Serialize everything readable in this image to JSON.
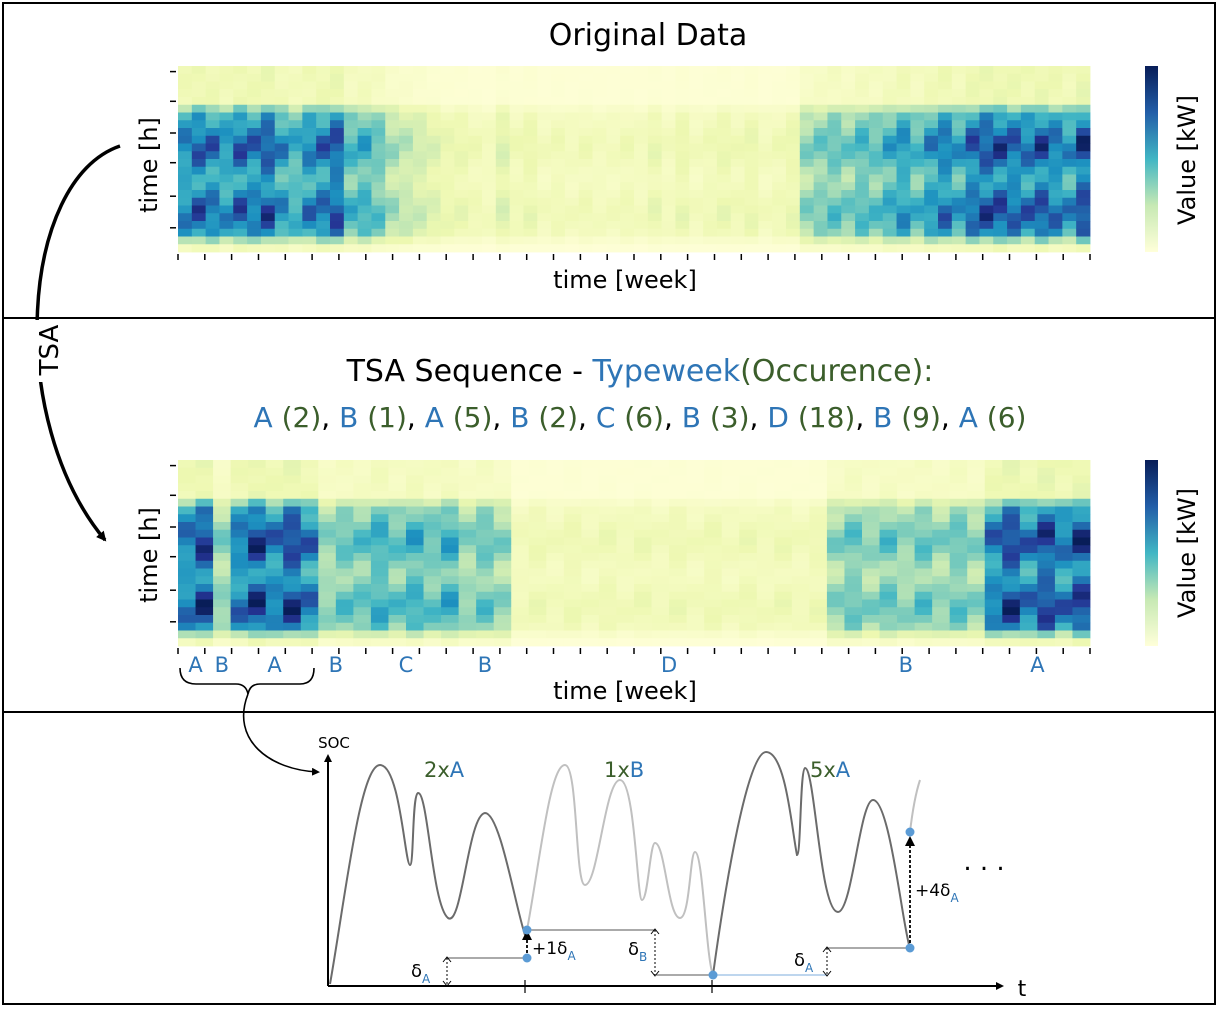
{
  "panel1": {
    "title": "Original Data",
    "xlabel": "time [week]",
    "ylabel": "time [h]",
    "colorbar_label": "Value [kW]"
  },
  "side_arrow_label": "TSA",
  "panel2": {
    "title_prefix": "TSA Sequence - ",
    "title_typeweek": "Typeweek",
    "title_occurence": "(Occurence):",
    "sequence": [
      {
        "week": "A",
        "count": "(2)"
      },
      {
        "week": "B",
        "count": "(1)"
      },
      {
        "week": "A",
        "count": "(5)"
      },
      {
        "week": "B",
        "count": "(2)"
      },
      {
        "week": "C",
        "count": "(6)"
      },
      {
        "week": "B",
        "count": "(3)"
      },
      {
        "week": "D",
        "count": "(18)"
      },
      {
        "week": "B",
        "count": "(9)"
      },
      {
        "week": "A",
        "count": "(6)"
      }
    ],
    "segment_labels": [
      "A",
      "B",
      "A",
      "B",
      "C",
      "B",
      "D",
      "B",
      "A"
    ],
    "xlabel": "time [week]",
    "ylabel": "time [h]",
    "colorbar_label": "Value [kW]"
  },
  "panel3": {
    "ylabel": "SOC",
    "xlabel": "t",
    "repeat_labels": [
      {
        "count": "2x",
        "week": "A"
      },
      {
        "count": "1x",
        "week": "B"
      },
      {
        "count": "5x",
        "week": "A"
      }
    ],
    "ellipsis": ". . .",
    "delta_labels": [
      {
        "main": "δ",
        "sub": "A"
      },
      {
        "main": "+1δ",
        "sub": "A"
      },
      {
        "main": "δ",
        "sub": "B"
      },
      {
        "main": "δ",
        "sub": "A"
      },
      {
        "main": "+4δ",
        "sub": "A"
      }
    ]
  },
  "colors": {
    "week_letter": "#2e75b6",
    "occurence": "#3b5e2b",
    "heat_low": "#ffffd9",
    "heat_mid": "#41b6c4",
    "heat_high": "#081d58",
    "curve_dark": "#6b6b6b",
    "curve_light": "#bdbdbd",
    "marker": "#5b9bd5"
  }
}
